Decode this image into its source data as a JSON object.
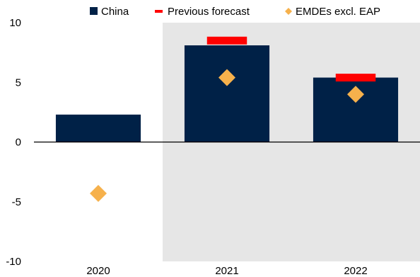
{
  "chart_data": {
    "type": "bar",
    "categories": [
      "2020",
      "2021",
      "2022"
    ],
    "series": [
      {
        "name": "China",
        "kind": "bar",
        "values": [
          2.3,
          8.1,
          5.4
        ]
      },
      {
        "name": "Previous forecast",
        "kind": "marker-dash",
        "values": [
          null,
          8.5,
          5.4
        ]
      },
      {
        "name": "EMDEs excl. EAP",
        "kind": "marker-diamond",
        "values": [
          -4.3,
          5.4,
          4.0
        ]
      }
    ],
    "ylim": [
      -10,
      10
    ],
    "yticks": [
      10,
      5,
      0,
      -5,
      -10
    ],
    "yticklabels": [
      "10",
      "5",
      "0",
      "-5",
      "-10"
    ],
    "shaded_categories": [
      "2021",
      "2022"
    ],
    "legend_placement": "top",
    "colors": {
      "China": "#002147",
      "Previous forecast": "#ff0000",
      "EMDEs excl. EAP": "#f6b14c",
      "shade": "#e6e6e6",
      "axis": "#000000"
    }
  }
}
